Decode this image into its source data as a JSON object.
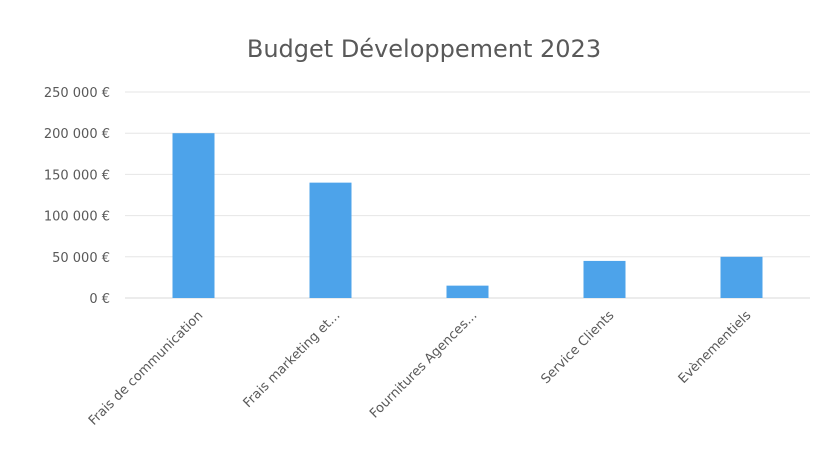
{
  "chart_data": {
    "type": "bar",
    "title": "Budget Développement 2023",
    "categories": [
      "Frais de communication",
      "Frais marketing et...",
      "Fournitures Agences...",
      "Service Clients",
      "Evènementiels"
    ],
    "values": [
      200000,
      140000,
      15000,
      45000,
      50000
    ],
    "y_ticks": [
      "0 €",
      "50 000 €",
      "100 000 €",
      "150 000 €",
      "200 000 €",
      "250 000 €"
    ],
    "ylim": [
      0,
      250000
    ],
    "grid": true,
    "legend": "none",
    "bar_color": "#4da3ea",
    "grid_color": "#e6e6e6"
  }
}
